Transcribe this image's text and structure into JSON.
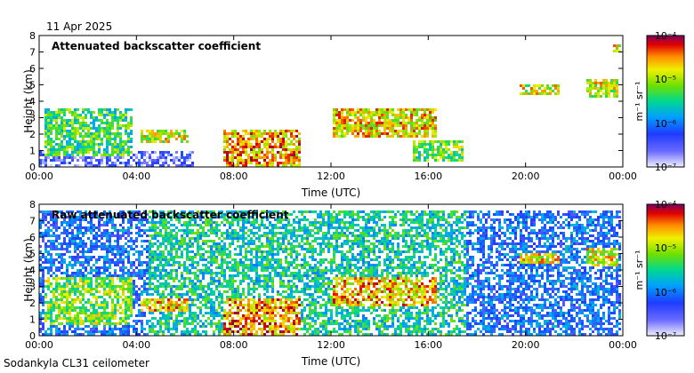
{
  "date": "11 Apr 2025",
  "footer": "Sodankyla CL31 ceilometer",
  "chart_data": [
    {
      "type": "heatmap",
      "title": "Attenuated backscatter coefficient",
      "xlabel": "Time (UTC)",
      "ylabel": "Height (km)",
      "xlim": [
        0,
        24
      ],
      "ylim": [
        0,
        8
      ],
      "x_ticks": [
        "00:00",
        "04:00",
        "08:00",
        "12:00",
        "16:00",
        "20:00",
        "00:00"
      ],
      "y_ticks": [
        "0",
        "1",
        "2",
        "3",
        "4",
        "5",
        "6",
        "7",
        "8"
      ],
      "colorbar": {
        "label": "m⁻¹ sr⁻¹",
        "scale": "log",
        "range": [
          1e-07,
          0.0001
        ],
        "tick_labels": [
          "10⁻⁴",
          "10⁻⁵",
          "10⁻⁶",
          "10⁻⁷"
        ]
      },
      "features": [
        {
          "t0": 0.0,
          "t1": 6.4,
          "h0": 0.0,
          "h1": 0.9,
          "level": 0.15,
          "kind": "surface noise"
        },
        {
          "t0": 0.2,
          "t1": 3.8,
          "h0": 0.7,
          "h1": 3.6,
          "level": 0.55,
          "kind": "boundary layer aerosol"
        },
        {
          "t0": 4.2,
          "t1": 6.2,
          "h0": 1.4,
          "h1": 2.3,
          "level": 0.7,
          "kind": "cloud"
        },
        {
          "t0": 7.6,
          "t1": 10.8,
          "h0": 0.0,
          "h1": 2.2,
          "level": 0.8,
          "kind": "cloud / precipitation"
        },
        {
          "t0": 12.1,
          "t1": 16.4,
          "h0": 1.8,
          "h1": 3.6,
          "level": 0.75,
          "kind": "cloud"
        },
        {
          "t0": 15.4,
          "t1": 17.4,
          "h0": 0.4,
          "h1": 1.6,
          "level": 0.6,
          "kind": "cloud"
        },
        {
          "t0": 19.8,
          "t1": 21.4,
          "h0": 4.4,
          "h1": 5.0,
          "level": 0.7,
          "kind": "cloud"
        },
        {
          "t0": 22.5,
          "t1": 23.8,
          "h0": 4.2,
          "h1": 5.4,
          "level": 0.7,
          "kind": "cloud"
        },
        {
          "t0": 23.6,
          "t1": 23.9,
          "h0": 6.9,
          "h1": 7.6,
          "level": 0.75,
          "kind": "cloud"
        }
      ]
    },
    {
      "type": "heatmap",
      "title": "Raw attenuated backscatter coefficient",
      "xlabel": "Time (UTC)",
      "ylabel": "Height (km)",
      "xlim": [
        0,
        24
      ],
      "ylim": [
        0,
        8
      ],
      "x_ticks": [
        "00:00",
        "04:00",
        "08:00",
        "12:00",
        "16:00",
        "20:00",
        "00:00"
      ],
      "y_ticks": [
        "0",
        "1",
        "2",
        "3",
        "4",
        "5",
        "6",
        "7",
        "8"
      ],
      "colorbar": {
        "label": "m⁻¹ sr⁻¹",
        "scale": "log",
        "range": [
          1e-07,
          0.0001
        ],
        "tick_labels": [
          "10⁻⁴",
          "10⁻⁵",
          "10⁻⁶",
          "10⁻⁷"
        ]
      },
      "features": [
        {
          "t0": 0.0,
          "t1": 24.0,
          "h0": 0.0,
          "h1": 7.6,
          "level": 0.3,
          "kind": "background noise"
        },
        {
          "t0": 4.5,
          "t1": 17.6,
          "h0": 0.0,
          "h1": 7.6,
          "level": 0.48,
          "kind": "elevated noise"
        },
        {
          "t0": 0.2,
          "t1": 3.8,
          "h0": 0.7,
          "h1": 3.6,
          "level": 0.62,
          "kind": "boundary layer aerosol"
        },
        {
          "t0": 4.2,
          "t1": 6.2,
          "h0": 1.4,
          "h1": 2.3,
          "level": 0.75,
          "kind": "cloud"
        },
        {
          "t0": 7.6,
          "t1": 10.8,
          "h0": 0.0,
          "h1": 2.2,
          "level": 0.82,
          "kind": "cloud / precipitation"
        },
        {
          "t0": 12.1,
          "t1": 16.4,
          "h0": 1.8,
          "h1": 3.6,
          "level": 0.78,
          "kind": "cloud"
        },
        {
          "t0": 19.8,
          "t1": 21.4,
          "h0": 4.4,
          "h1": 5.0,
          "level": 0.72,
          "kind": "cloud"
        },
        {
          "t0": 22.5,
          "t1": 23.8,
          "h0": 4.2,
          "h1": 5.4,
          "level": 0.72,
          "kind": "cloud"
        }
      ]
    }
  ]
}
